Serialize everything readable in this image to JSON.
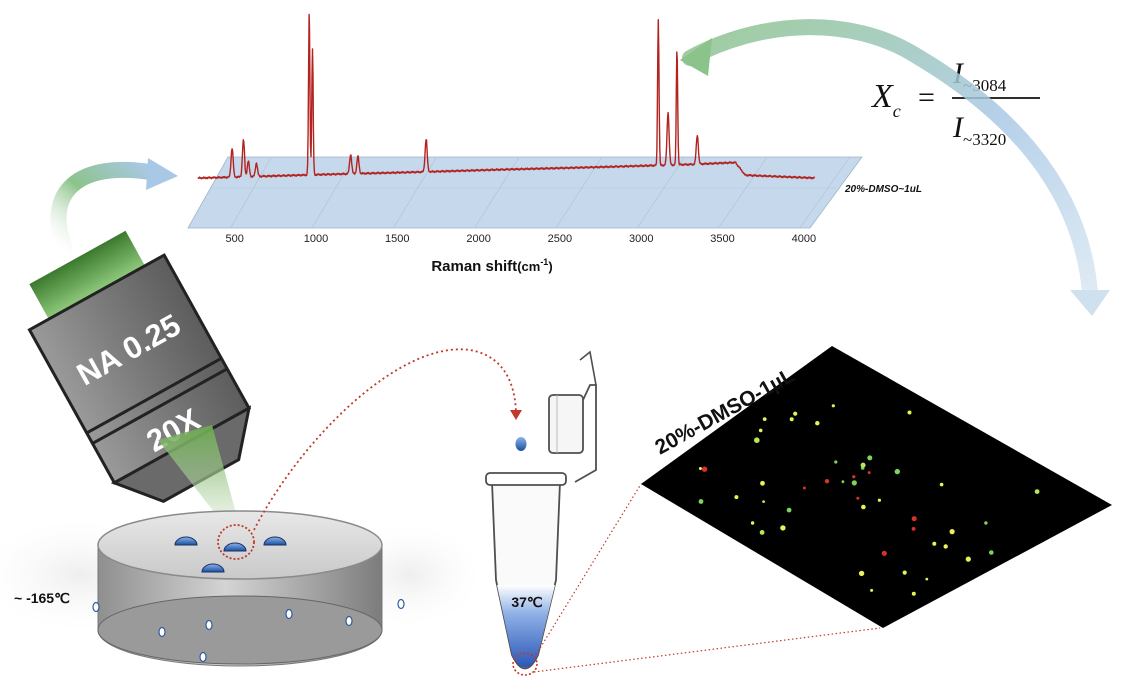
{
  "spectrum": {
    "sample_label": "20%-DMSO~1uL",
    "x_label_main": "Raman shift",
    "x_label_unit_open": "(cm",
    "x_label_unit_sup": "-1",
    "x_label_unit_close": ")",
    "x_ticks": [
      "500",
      "1000",
      "1500",
      "2000",
      "2500",
      "3000",
      "3500",
      "4000"
    ]
  },
  "chart_data": {
    "type": "line",
    "xlabel": "Raman shift(cm-1)",
    "xlim": [
      250,
      4050
    ],
    "x_ticks": [
      500,
      1000,
      1500,
      2000,
      2500,
      3000,
      3500,
      4000
    ],
    "series": [
      {
        "name": "20%-DMSO~1uL",
        "peaks": [
          {
            "x": 460,
            "y": 30
          },
          {
            "x": 530,
            "y": 38
          },
          {
            "x": 560,
            "y": 16
          },
          {
            "x": 610,
            "y": 14
          },
          {
            "x": 935,
            "y": 170
          },
          {
            "x": 955,
            "y": 130
          },
          {
            "x": 1190,
            "y": 20
          },
          {
            "x": 1235,
            "y": 18
          },
          {
            "x": 1655,
            "y": 34
          },
          {
            "x": 3085,
            "y": 150
          },
          {
            "x": 3145,
            "y": 55
          },
          {
            "x": 3200,
            "y": 120
          },
          {
            "x": 3325,
            "y": 30
          }
        ],
        "baseline": [
          {
            "x": 250,
            "y": 0
          },
          {
            "x": 3300,
            "y": 14
          },
          {
            "x": 3560,
            "y": 16
          },
          {
            "x": 3620,
            "y": 3
          },
          {
            "x": 4050,
            "y": 0
          }
        ]
      }
    ]
  },
  "formula": {
    "lhs_main": "X",
    "lhs_sub": "c",
    "equals": "=",
    "num_main": "I",
    "num_sub": "~3084",
    "den_main": "I",
    "den_sub": "~3320"
  },
  "objective": {
    "na_label": "NA 0.25",
    "mag_label": "20X"
  },
  "stage": {
    "temperature": "~ -165℃"
  },
  "tube": {
    "temperature": "37℃"
  },
  "image_panel": {
    "label": "20%-DMSO-1µL"
  },
  "colors": {
    "spectrum_line": "#b3231f",
    "spectrum_plane": "#c5d8ec",
    "peak_top": "#2a4f9a",
    "peak_mid": "#f1c232",
    "green_arrow": "#8cc38a",
    "blue_arrow": "#a9c8e5",
    "dotted_red": "#c0392b",
    "objective_gray": "#8a8a8a",
    "panel_bg": "#000000"
  }
}
